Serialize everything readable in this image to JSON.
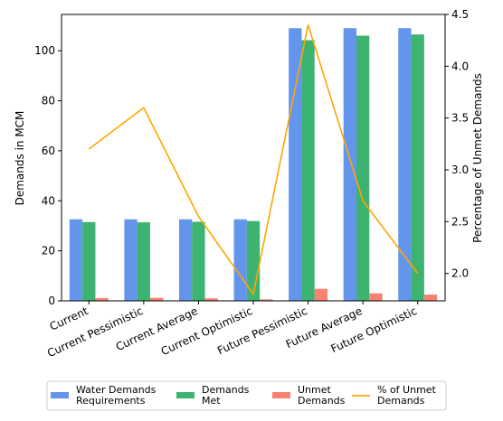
{
  "chart_data": {
    "type": "bar",
    "categories": [
      "Current",
      "Current Pessimistic",
      "Current Average",
      "Current Optimistic",
      "Future Pessimistic",
      "Future Average",
      "Future Optimistic"
    ],
    "series": [
      {
        "name": "Water Demands Requirements",
        "legend_lines": [
          "Water Demands",
          "Requirements"
        ],
        "color": "#6495ED",
        "axis": "left",
        "kind": "bar",
        "values": [
          32.6,
          32.6,
          32.6,
          32.6,
          109,
          109,
          109
        ]
      },
      {
        "name": "Demands Met",
        "legend_lines": [
          "Demands",
          "Met"
        ],
        "color": "#3CB371",
        "axis": "left",
        "kind": "bar",
        "values": [
          31.5,
          31.4,
          31.6,
          31.9,
          104.2,
          106,
          106.5
        ]
      },
      {
        "name": "Unmet Demands",
        "legend_lines": [
          "Unmet",
          "Demands"
        ],
        "color": "#FA8072",
        "axis": "left",
        "kind": "bar",
        "values": [
          1.1,
          1.2,
          1.0,
          0.6,
          4.8,
          3.0,
          2.5
        ]
      },
      {
        "name": "% of Unmet Demands",
        "legend_lines": [
          "% of Unmet",
          "Demands"
        ],
        "color": "#FFA500",
        "axis": "right",
        "kind": "line",
        "values": [
          3.2,
          3.6,
          2.55,
          1.8,
          4.4,
          2.7,
          2.0
        ]
      }
    ],
    "ylabel": "Demands in MCM",
    "y2label": "Percentage of Unmet Demands",
    "ylim": [
      0,
      114.5
    ],
    "y2lim": [
      1.735,
      4.5
    ],
    "yticks": [
      "0",
      "20",
      "40",
      "60",
      "80",
      "100"
    ],
    "y2ticks": [
      "2.0",
      "2.5",
      "3.0",
      "3.5",
      "4.0",
      "4.5"
    ],
    "grid": false,
    "legend_position": "bottom"
  }
}
